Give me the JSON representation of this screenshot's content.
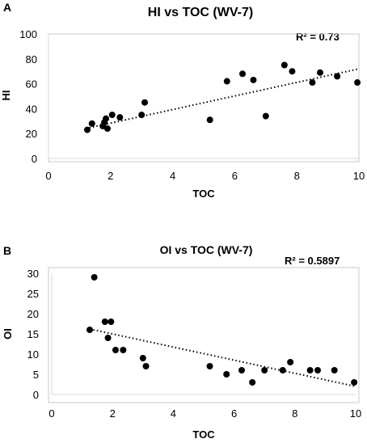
{
  "chart_data": [
    {
      "type": "scatter",
      "panel": "A",
      "title": "HI vs TOC (WV-7)",
      "r_squared": "R² = 0.73",
      "xlabel": "TOC",
      "ylabel": "HI",
      "xlim": [
        0,
        10
      ],
      "ylim": [
        0,
        100
      ],
      "xticks": [
        0,
        2,
        4,
        6,
        8,
        10
      ],
      "yticks": [
        0,
        20,
        40,
        60,
        80,
        100
      ],
      "trendline": {
        "style": "dotted",
        "x": [
          1.2,
          10
        ],
        "y": [
          24,
          72
        ]
      },
      "points": [
        {
          "x": 1.25,
          "y": 23
        },
        {
          "x": 1.4,
          "y": 28
        },
        {
          "x": 1.75,
          "y": 26
        },
        {
          "x": 1.8,
          "y": 29
        },
        {
          "x": 1.85,
          "y": 32
        },
        {
          "x": 1.9,
          "y": 24
        },
        {
          "x": 2.05,
          "y": 35
        },
        {
          "x": 2.3,
          "y": 33
        },
        {
          "x": 3.0,
          "y": 35
        },
        {
          "x": 3.1,
          "y": 45
        },
        {
          "x": 5.2,
          "y": 31
        },
        {
          "x": 5.75,
          "y": 62
        },
        {
          "x": 6.25,
          "y": 68
        },
        {
          "x": 6.6,
          "y": 63
        },
        {
          "x": 7.0,
          "y": 34
        },
        {
          "x": 7.6,
          "y": 75
        },
        {
          "x": 7.85,
          "y": 70
        },
        {
          "x": 8.5,
          "y": 61
        },
        {
          "x": 8.75,
          "y": 69
        },
        {
          "x": 9.3,
          "y": 66
        },
        {
          "x": 9.95,
          "y": 61
        }
      ]
    },
    {
      "type": "scatter",
      "panel": "B",
      "title": "OI vs TOC (WV-7)",
      "r_squared": "R² = 0.5897",
      "xlabel": "TOC",
      "ylabel": "OI",
      "xlim": [
        0,
        10
      ],
      "ylim": [
        0,
        30
      ],
      "xticks": [
        0,
        2,
        4,
        6,
        8,
        10
      ],
      "yticks": [
        0,
        5,
        10,
        15,
        20,
        25,
        30
      ],
      "trendline": {
        "style": "dotted",
        "x": [
          1.25,
          10
        ],
        "y": [
          16.2,
          2
        ]
      },
      "points": [
        {
          "x": 1.25,
          "y": 16
        },
        {
          "x": 1.4,
          "y": 29
        },
        {
          "x": 1.75,
          "y": 18
        },
        {
          "x": 1.85,
          "y": 14
        },
        {
          "x": 1.95,
          "y": 18
        },
        {
          "x": 2.1,
          "y": 11
        },
        {
          "x": 2.35,
          "y": 11
        },
        {
          "x": 3.0,
          "y": 9
        },
        {
          "x": 3.1,
          "y": 7
        },
        {
          "x": 5.2,
          "y": 7
        },
        {
          "x": 5.75,
          "y": 5
        },
        {
          "x": 6.25,
          "y": 6
        },
        {
          "x": 6.6,
          "y": 3
        },
        {
          "x": 7.0,
          "y": 6
        },
        {
          "x": 7.6,
          "y": 6
        },
        {
          "x": 7.85,
          "y": 8
        },
        {
          "x": 8.5,
          "y": 6
        },
        {
          "x": 8.75,
          "y": 6
        },
        {
          "x": 9.3,
          "y": 6
        },
        {
          "x": 9.95,
          "y": 3
        }
      ]
    }
  ]
}
